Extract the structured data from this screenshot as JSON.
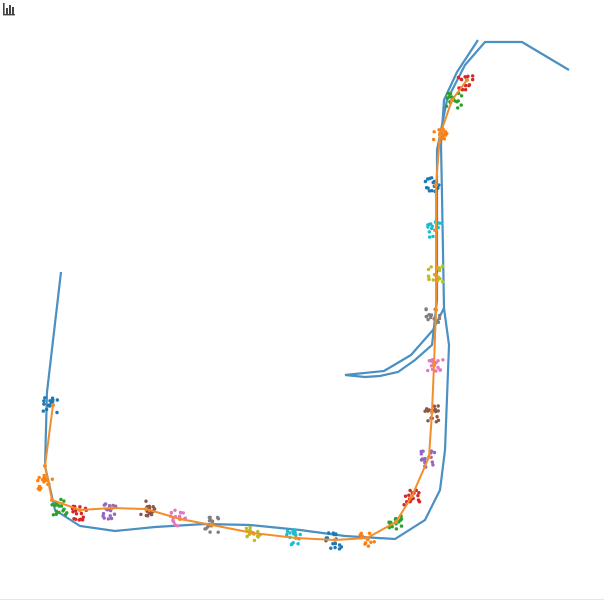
{
  "toolbar": {
    "icon": "bar-chart-icon",
    "icon_color": "#444444"
  },
  "map": {
    "colors": {
      "road": "#4a90c2",
      "route": "#f28e2b"
    },
    "cluster_palette": [
      "#1f77b4",
      "#ff7f0e",
      "#2ca02c",
      "#d62728",
      "#9467bd",
      "#8c564b",
      "#e377c2",
      "#7f7f7f",
      "#bcbd22",
      "#17becf"
    ]
  }
}
